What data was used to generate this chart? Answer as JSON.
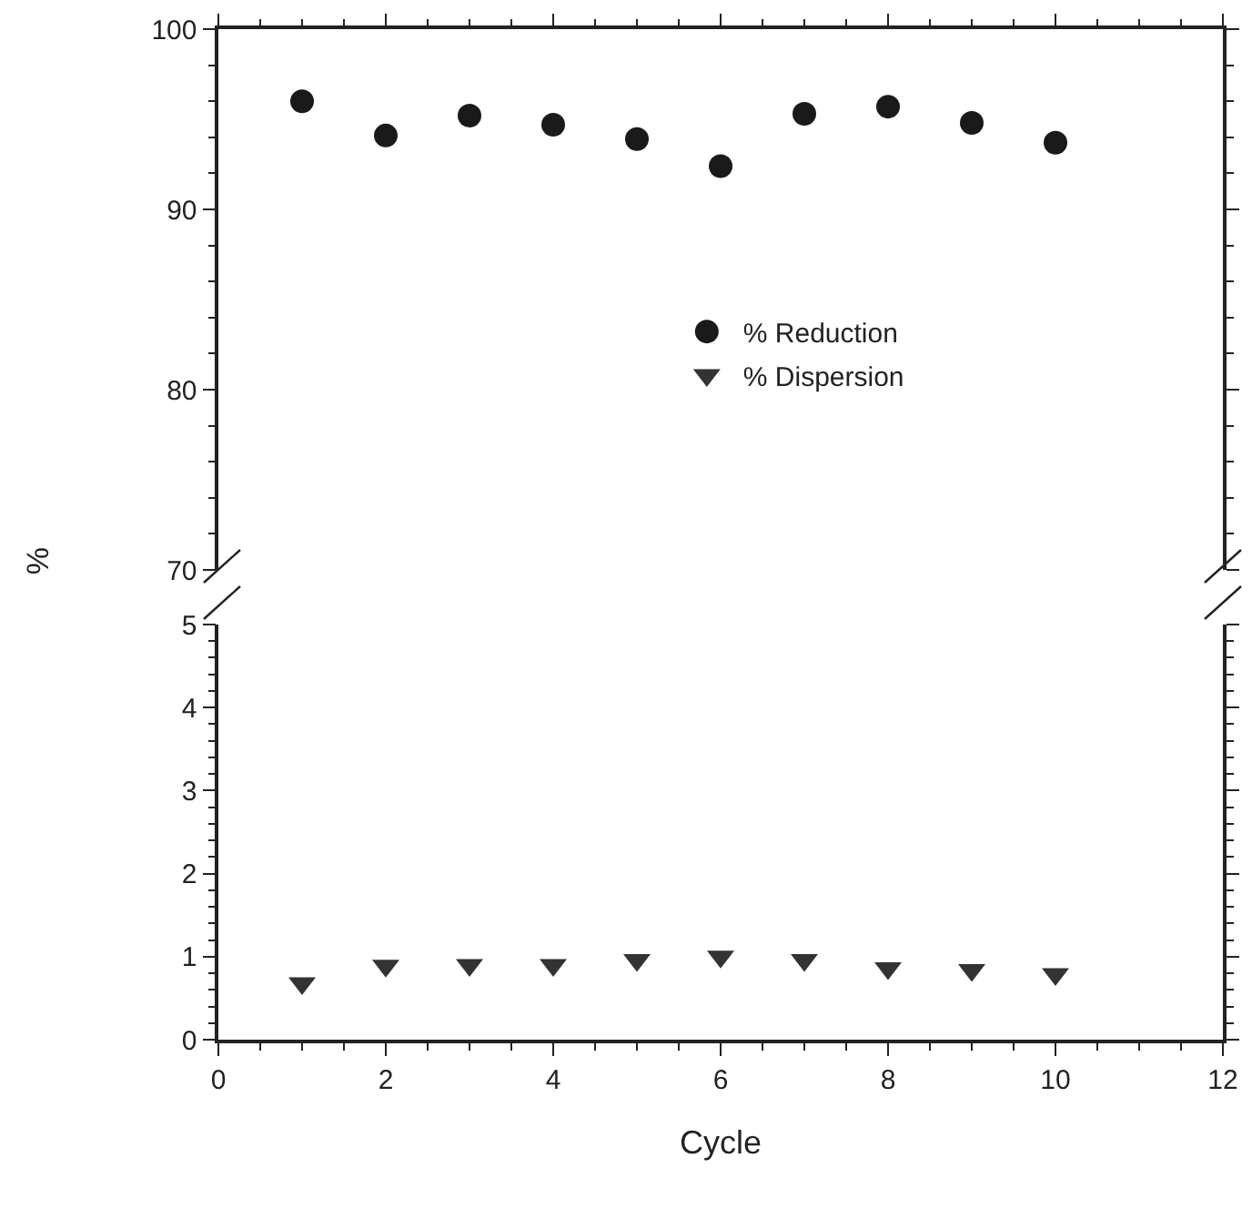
{
  "chart_data": [
    {
      "type": "scatter",
      "ylabel": "%",
      "x": [
        1,
        2,
        3,
        4,
        5,
        6,
        7,
        8,
        9,
        10
      ],
      "series": [
        {
          "name": "% Reduction",
          "color": "#1a1a1a",
          "values": [
            96.0,
            94.1,
            95.2,
            94.7,
            93.9,
            92.4,
            95.3,
            95.7,
            94.8,
            93.7
          ]
        }
      ],
      "xlim": [
        0,
        12
      ],
      "xticks": [
        0,
        2,
        4,
        6,
        8,
        10,
        12
      ],
      "ylim": [
        70,
        100
      ],
      "yticks": [
        70,
        80,
        90,
        100
      ],
      "tick_labels": "y",
      "marker": "circle",
      "legend": "right",
      "grid": false
    },
    {
      "type": "scatter",
      "xlabel": "Cycle",
      "x": [
        1,
        2,
        3,
        4,
        5,
        6,
        7,
        8,
        9,
        10
      ],
      "series": [
        {
          "name": "% Dispersion",
          "color": "#333333",
          "values": [
            0.68,
            0.89,
            0.9,
            0.9,
            0.96,
            1.0,
            0.96,
            0.86,
            0.84,
            0.79
          ]
        }
      ],
      "xlim": [
        0,
        12
      ],
      "xticks": [
        0,
        2,
        4,
        6,
        8,
        10,
        12
      ],
      "ylim": [
        0,
        5
      ],
      "yticks": [
        0,
        1,
        2,
        3,
        4,
        5
      ],
      "marker": "triangle",
      "legend": "right",
      "grid": false
    }
  ]
}
